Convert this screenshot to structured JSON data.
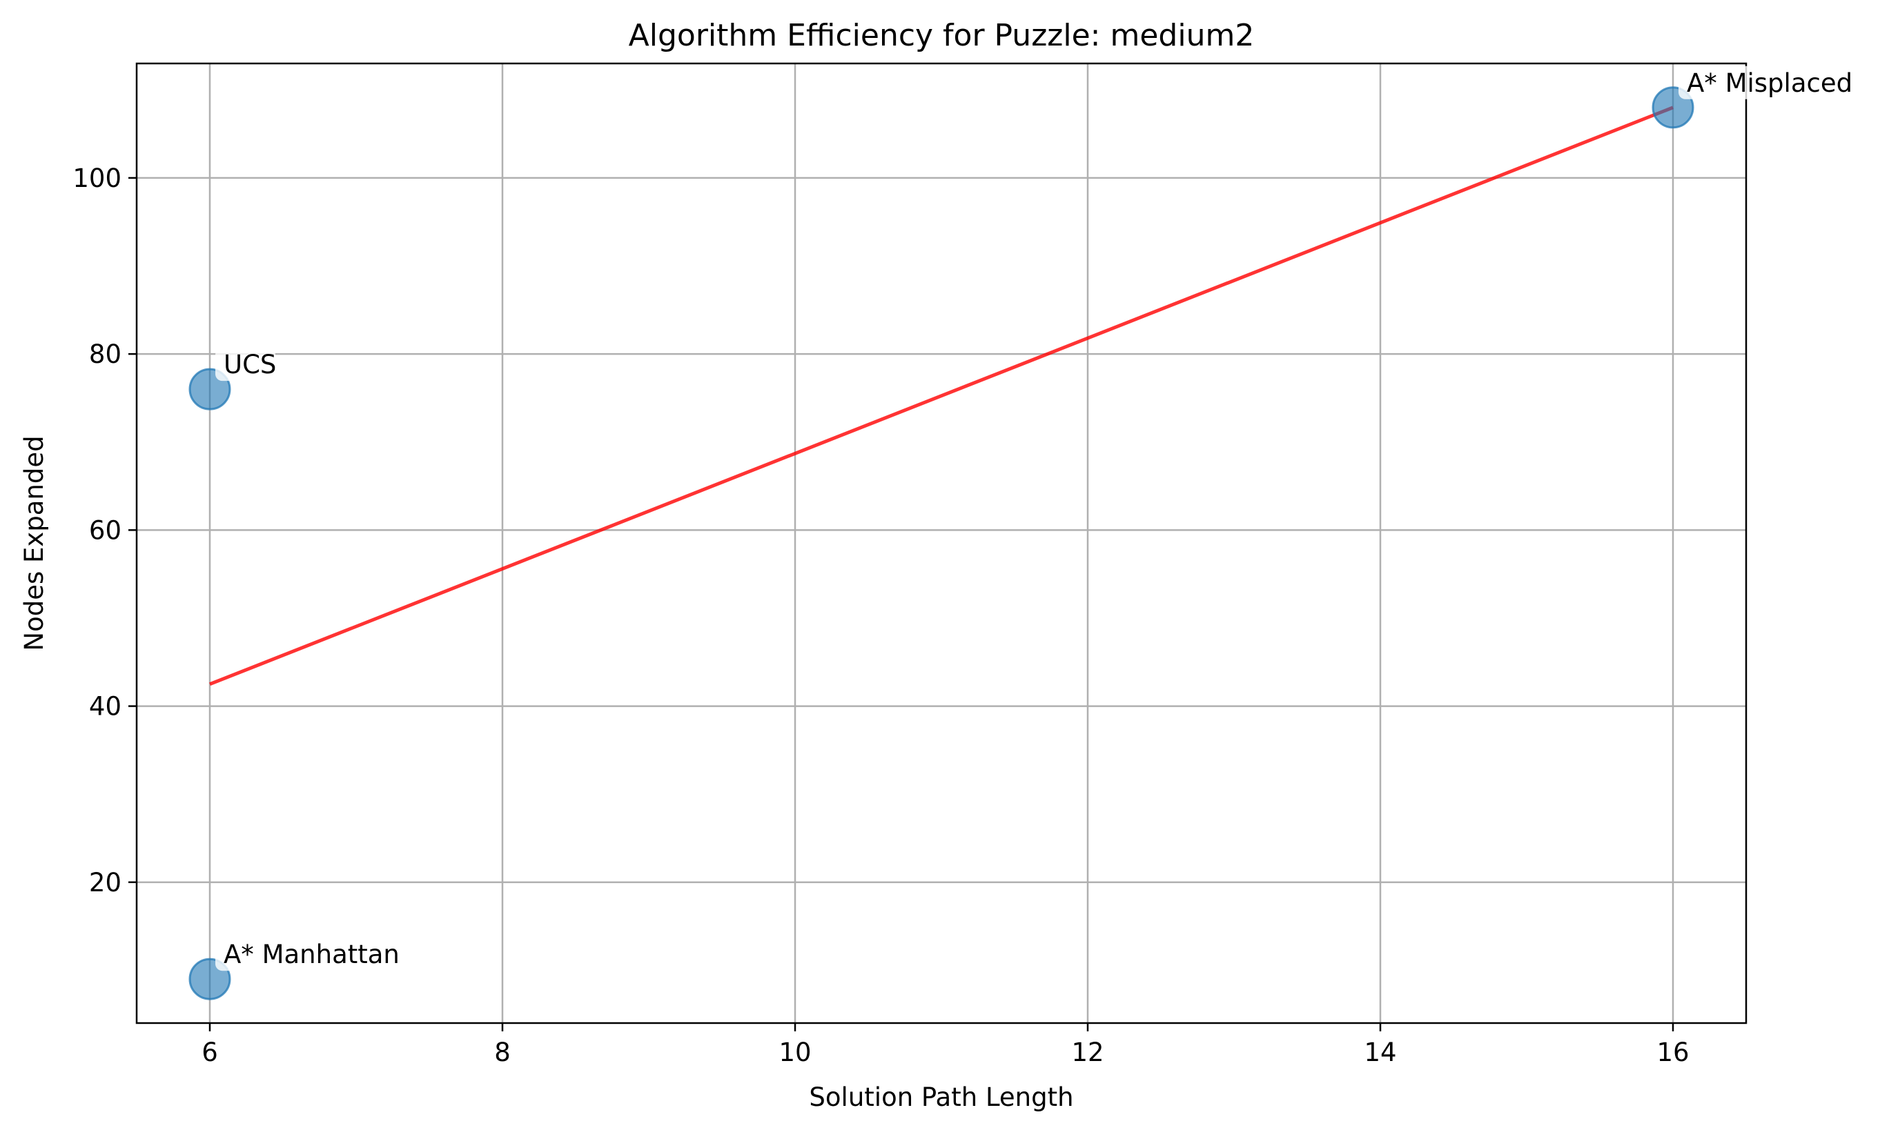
{
  "chart_data": {
    "type": "scatter",
    "title": "Algorithm Efficiency for Puzzle: medium2",
    "xlabel": "Solution Path Length",
    "ylabel": "Nodes Expanded",
    "xlim": [
      5.5,
      16.5
    ],
    "ylim": [
      4,
      113
    ],
    "xticks": [
      6,
      8,
      10,
      12,
      14,
      16
    ],
    "yticks": [
      20,
      40,
      60,
      80,
      100
    ],
    "grid": true,
    "legend": "none",
    "points": [
      {
        "label": "A* Misplaced",
        "x": 16,
        "y": 108
      },
      {
        "label": "UCS",
        "x": 6,
        "y": 76
      },
      {
        "label": "A* Manhattan",
        "x": 6,
        "y": 9
      }
    ],
    "trendline": {
      "x": [
        6,
        16
      ],
      "y": [
        42.5,
        108
      ]
    },
    "colors": {
      "marker_fill": "#1f77b4",
      "marker_alpha": 0.6,
      "trendline": "#ff0000",
      "trendline_alpha": 0.8
    }
  }
}
